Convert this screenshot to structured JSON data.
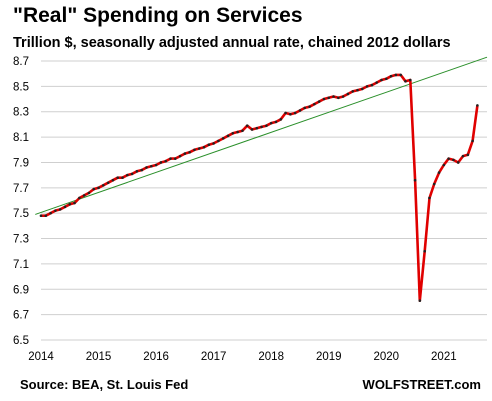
{
  "chart_data": {
    "type": "line",
    "title": "\"Real\" Spending on Services",
    "subtitle": "Trillion $, seasonally adjusted annual rate, chained 2012 dollars",
    "xlabel": "",
    "ylabel": "",
    "ylim": [
      6.5,
      8.7
    ],
    "yticks": [
      "8.7",
      "8.5",
      "8.3",
      "8.1",
      "7.9",
      "7.7",
      "7.5",
      "7.3",
      "7.1",
      "6.9",
      "6.7",
      "6.5"
    ],
    "xlim": [
      2014,
      2021.75
    ],
    "xticks": [
      "2014",
      "2015",
      "2016",
      "2017",
      "2018",
      "2019",
      "2020",
      "2021"
    ],
    "grid": "horizontal",
    "colors": {
      "series": "#e00000",
      "points": "#222222",
      "trend": "#2a8f2a",
      "grid": "#cfcfcf"
    },
    "series": [
      {
        "x": [
          2014.0,
          2014.083,
          2014.167,
          2014.25,
          2014.333,
          2014.417,
          2014.5,
          2014.583,
          2014.667,
          2014.75,
          2014.833,
          2014.917,
          2015.0,
          2015.083,
          2015.167,
          2015.25,
          2015.333,
          2015.417,
          2015.5,
          2015.583,
          2015.667,
          2015.75,
          2015.833,
          2015.917,
          2016.0,
          2016.083,
          2016.167,
          2016.25,
          2016.333,
          2016.417,
          2016.5,
          2016.583,
          2016.667,
          2016.75,
          2016.833,
          2016.917,
          2017.0,
          2017.083,
          2017.167,
          2017.25,
          2017.333,
          2017.417,
          2017.5,
          2017.583,
          2017.667,
          2017.75,
          2017.833,
          2017.917,
          2018.0,
          2018.083,
          2018.167,
          2018.25,
          2018.333,
          2018.417,
          2018.5,
          2018.583,
          2018.667,
          2018.75,
          2018.833,
          2018.917,
          2019.0,
          2019.083,
          2019.167,
          2019.25,
          2019.333,
          2019.417,
          2019.5,
          2019.583,
          2019.667,
          2019.75,
          2019.833,
          2019.917,
          2020.0,
          2020.083,
          2020.167,
          2020.25,
          2020.333,
          2020.417,
          2020.5,
          2020.583,
          2020.667,
          2020.75,
          2020.833,
          2020.917,
          2021.0,
          2021.083,
          2021.167,
          2021.25,
          2021.333,
          2021.417,
          2021.5,
          2021.583
        ],
        "values": [
          7.48,
          7.48,
          7.5,
          7.52,
          7.53,
          7.55,
          7.57,
          7.58,
          7.62,
          7.64,
          7.66,
          7.69,
          7.7,
          7.72,
          7.74,
          7.76,
          7.78,
          7.78,
          7.8,
          7.81,
          7.83,
          7.84,
          7.86,
          7.87,
          7.88,
          7.9,
          7.91,
          7.93,
          7.93,
          7.95,
          7.97,
          7.98,
          8.0,
          8.01,
          8.02,
          8.04,
          8.05,
          8.07,
          8.09,
          8.11,
          8.13,
          8.14,
          8.15,
          8.19,
          8.16,
          8.17,
          8.18,
          8.19,
          8.21,
          8.22,
          8.24,
          8.29,
          8.28,
          8.29,
          8.31,
          8.33,
          8.34,
          8.36,
          8.38,
          8.4,
          8.41,
          8.42,
          8.41,
          8.42,
          8.44,
          8.46,
          8.47,
          8.48,
          8.5,
          8.51,
          8.53,
          8.55,
          8.56,
          8.58,
          8.59,
          8.59,
          8.54,
          8.55,
          7.76,
          6.81,
          7.2,
          7.62,
          7.73,
          7.82,
          7.88,
          7.93,
          7.92,
          7.9,
          7.95,
          7.96,
          8.07,
          8.35
        ]
      }
    ],
    "trend_line": {
      "x": [
        2013.9,
        2021.75
      ],
      "values": [
        7.49,
        8.73
      ]
    },
    "footer_left": "Source: BEA, St. Louis Fed",
    "footer_right": "WOLFSTREET.com"
  }
}
